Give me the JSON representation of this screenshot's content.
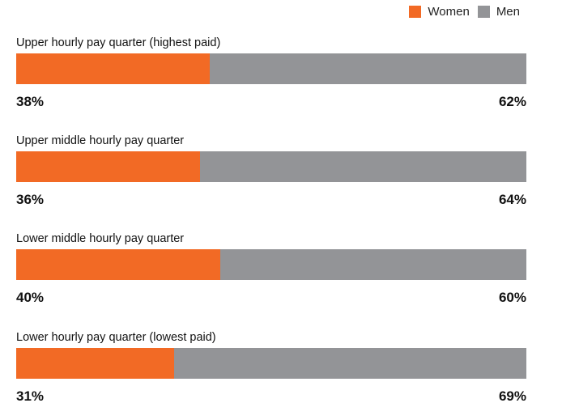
{
  "legend": {
    "women_label": "Women",
    "men_label": "Men"
  },
  "colors": {
    "women": "#f26a25",
    "men": "#939497"
  },
  "chart_data": {
    "type": "bar",
    "orientation": "horizontal-stacked-100",
    "categories": [
      "Upper hourly pay quarter (highest paid)",
      "Upper middle hourly pay quarter",
      "Lower middle hourly pay quarter",
      "Lower hourly pay quarter (lowest paid)"
    ],
    "series": [
      {
        "name": "Women",
        "values": [
          38,
          36,
          40,
          31
        ]
      },
      {
        "name": "Men",
        "values": [
          62,
          64,
          60,
          69
        ]
      }
    ],
    "value_labels": {
      "women": [
        "38%",
        "36%",
        "40%",
        "31%"
      ],
      "men": [
        "62%",
        "64%",
        "60%",
        "69%"
      ]
    },
    "legend_position": "top-right",
    "grid": false
  }
}
